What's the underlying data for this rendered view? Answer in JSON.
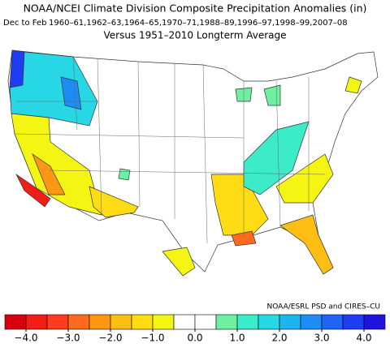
{
  "header": {
    "title": "NOAA/NCEI Climate Division Composite Precipitation Anomalies (in)",
    "season": "Dec to Feb",
    "years": "1960–61,1962–63,1964–65,1970–71,1988–89,1996–97,1998–99,2007–08",
    "subtitle": "Versus 1951–2010 Longterm Average"
  },
  "credit": "NOAA/ESRL PSD and CIRES–CU",
  "legend": {
    "colors": [
      "#d7000f",
      "#f01e14",
      "#ff3c1e",
      "#ff6a1e",
      "#ff9614",
      "#ffbe14",
      "#ffdc14",
      "#f5f514",
      "#ffffff",
      "#ffffff",
      "#6ef0a0",
      "#3cebc8",
      "#28d7e6",
      "#1eb4f0",
      "#1e8cf5",
      "#1e64f5",
      "#1e3cf0",
      "#1e14dc"
    ],
    "ticks": [
      {
        "value": -4,
        "label": "−4.0"
      },
      {
        "value": -3,
        "label": "−3.0"
      },
      {
        "value": -2,
        "label": "−2.0"
      },
      {
        "value": -1,
        "label": "−1.0"
      },
      {
        "value": 0,
        "label": "0.0"
      },
      {
        "value": 1,
        "label": "1.0"
      },
      {
        "value": 2,
        "label": "2.0"
      },
      {
        "value": 3,
        "label": "3.0"
      },
      {
        "value": 4,
        "label": "4.0"
      }
    ],
    "lim": [
      -4.5,
      4.5
    ]
  }
}
